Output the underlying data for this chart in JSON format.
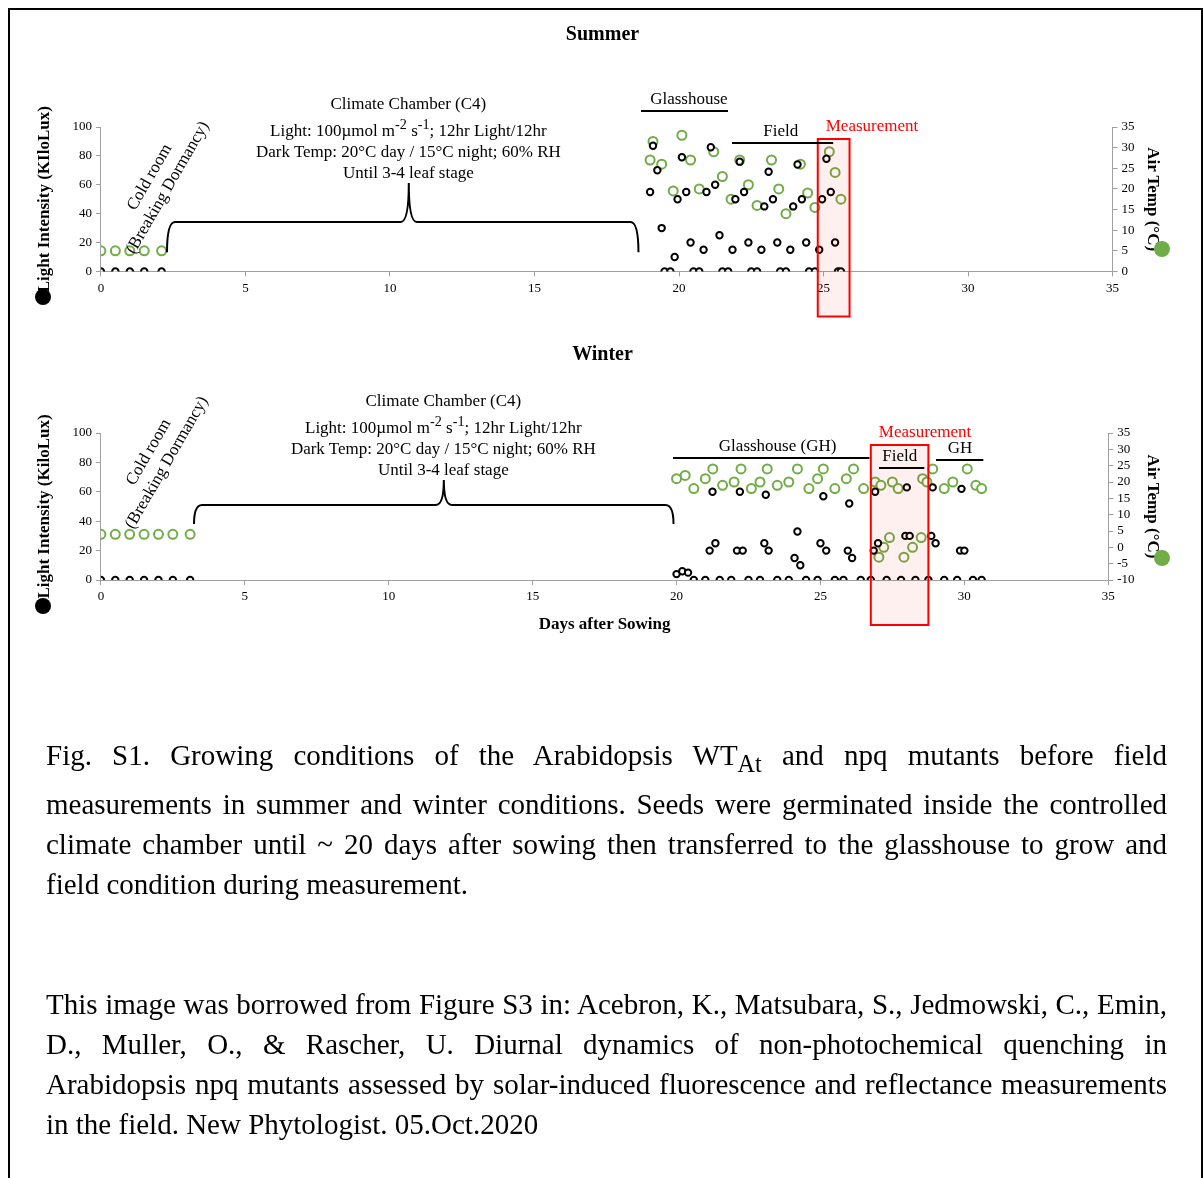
{
  "chart_data": [
    {
      "type": "scatter",
      "title": "Summer",
      "ylabel": "Light Intensity (KIloLux)",
      "y2label": "Air Temp (°C)",
      "marker": "circle",
      "xlim": [
        0,
        35
      ],
      "xticks": [
        0,
        5,
        10,
        15,
        20,
        25,
        30,
        35
      ],
      "ylim": [
        0,
        100
      ],
      "yticks": [
        0,
        20,
        40,
        60,
        80,
        100
      ],
      "y2lim": [
        0,
        35
      ],
      "y2ticks": [
        0,
        5,
        10,
        15,
        20,
        25,
        30,
        35
      ],
      "series": [
        {
          "color": "#000000",
          "x": [
            0,
            0.5,
            1,
            1.5,
            2.1,
            19.0,
            19.1,
            19.25,
            19.4,
            19.5,
            19.7,
            19.85,
            19.95,
            20.1,
            20.25,
            20.4,
            20.5,
            20.7,
            20.85,
            20.95,
            21.1,
            21.25,
            21.4,
            21.5,
            21.7,
            21.85,
            21.95,
            22.1,
            22.25,
            22.4,
            22.5,
            22.7,
            22.85,
            22.95,
            23.1,
            23.25,
            23.4,
            23.5,
            23.7,
            23.85,
            23.95,
            24.1,
            24.25,
            24.4,
            24.5,
            24.7,
            24.85,
            24.95,
            25.1,
            25.25,
            25.4,
            25.5,
            25.6
          ],
          "values": [
            0,
            0,
            0,
            0,
            0,
            55,
            87,
            70,
            30,
            0,
            0,
            10,
            50,
            79,
            55,
            20,
            0,
            0,
            15,
            55,
            86,
            60,
            25,
            0,
            0,
            15,
            50,
            76,
            55,
            20,
            0,
            0,
            15,
            45,
            69,
            50,
            20,
            0,
            0,
            15,
            45,
            74,
            50,
            20,
            0,
            0,
            15,
            50,
            78,
            55,
            20,
            0,
            0
          ]
        },
        {
          "color": "#70ad47",
          "axis": "y2",
          "x": [
            0,
            0.5,
            1,
            1.5,
            2.1,
            19.0,
            19.1,
            19.4,
            19.8,
            20.1,
            20.4,
            20.7,
            21.2,
            21.5,
            21.8,
            22.1,
            22.4,
            22.7,
            23.2,
            23.45,
            23.7,
            24.2,
            24.45,
            24.7,
            25.2,
            25.4,
            25.6
          ],
          "values": [
            5,
            5,
            5,
            5,
            5,
            27,
            31.5,
            26,
            19.5,
            33,
            27,
            20,
            29,
            23,
            17.5,
            27,
            21,
            16,
            27,
            20,
            14,
            26,
            19,
            15.5,
            29,
            24,
            17.5
          ]
        }
      ],
      "bands": [
        {
          "axis": "x",
          "from": 24.8,
          "to": 25.9,
          "label": "Measurement",
          "color": "#ff0000"
        }
      ],
      "annotations": [
        "Cold room\n(Breaking Dormancy)",
        "Climate Chamber (C4)\nLight:  100µmol m$^{-2}$ s$^{-1}$; 12hr Light/12hr\nDark Temp: 20°C day / 15°C night;  60% RH\nUntil 3-4 leaf stage",
        "Glasshouse",
        "Field"
      ]
    },
    {
      "type": "scatter",
      "title": "Winter",
      "xlabel": "Days after Sowing",
      "ylabel": "Light Intensity (KiloLux)",
      "y2label": "Air Temp (°C)",
      "marker": "circle",
      "xlim": [
        0,
        35
      ],
      "xticks": [
        0,
        5,
        10,
        15,
        20,
        25,
        30,
        35
      ],
      "ylim": [
        0,
        100
      ],
      "yticks": [
        0,
        20,
        40,
        60,
        80,
        100
      ],
      "y2lim": [
        -10,
        35
      ],
      "y2ticks": [
        -10,
        -5,
        0,
        5,
        10,
        15,
        20,
        25,
        30,
        35
      ],
      "series": [
        {
          "color": "#000000",
          "x": [
            0,
            0.5,
            1,
            1.5,
            2,
            2.5,
            3.1,
            20.0,
            20.2,
            20.4,
            20.6,
            21.0,
            21.15,
            21.25,
            21.35,
            21.5,
            21.9,
            22.1,
            22.2,
            22.3,
            22.5,
            22.9,
            23.05,
            23.1,
            23.2,
            23.5,
            23.9,
            24.1,
            24.2,
            24.3,
            24.5,
            24.9,
            25.0,
            25.1,
            25.2,
            25.5,
            25.8,
            25.95,
            26.0,
            26.1,
            26.4,
            26.75,
            26.85,
            26.9,
            27.0,
            27.3,
            27.8,
            27.95,
            28.0,
            28.1,
            28.3,
            28.75,
            28.85,
            28.9,
            29.0,
            29.3,
            29.75,
            29.85,
            29.9,
            30.0,
            30.3,
            30.6
          ],
          "values": [
            0,
            0,
            0,
            0,
            0,
            0,
            0,
            4,
            6,
            5,
            0,
            0,
            20,
            60,
            25,
            0,
            0,
            20,
            60,
            20,
            0,
            0,
            25,
            58,
            20,
            0,
            0,
            15,
            33,
            10,
            0,
            0,
            25,
            57,
            20,
            0,
            0,
            20,
            52,
            15,
            0,
            0,
            20,
            60,
            25,
            0,
            0,
            30,
            63,
            30,
            0,
            0,
            30,
            63,
            25,
            0,
            0,
            20,
            62,
            20,
            0,
            0
          ]
        },
        {
          "color": "#70ad47",
          "axis": "y2",
          "x": [
            0,
            0.5,
            1,
            1.5,
            2,
            2.5,
            3.1,
            20.0,
            20.3,
            20.6,
            21.0,
            21.26,
            21.6,
            22.0,
            22.24,
            22.6,
            22.9,
            23.15,
            23.5,
            23.9,
            24.2,
            24.6,
            24.9,
            25.1,
            25.5,
            25.9,
            26.15,
            26.5,
            26.9,
            27.03,
            27.1,
            27.2,
            27.4,
            27.5,
            27.7,
            27.9,
            28.2,
            28.5,
            28.55,
            28.7,
            28.9,
            29.3,
            29.6,
            30.1,
            30.4,
            30.6
          ],
          "values": [
            4,
            4,
            4,
            4,
            4,
            4,
            4,
            21,
            22,
            18,
            21,
            24,
            19,
            20,
            24,
            18,
            20,
            24,
            19,
            20,
            24,
            18,
            21,
            24,
            18,
            21,
            24,
            18,
            20,
            -3,
            19,
            0,
            3,
            20,
            18,
            -3,
            0,
            3,
            21,
            20,
            24,
            18,
            20,
            24,
            19,
            18
          ]
        }
      ],
      "bands": [
        {
          "axis": "x",
          "from": 26.75,
          "to": 28.75,
          "label": "Measurement",
          "color": "#ff0000"
        }
      ],
      "annotations": [
        "Cold room\n(Breaking Dormancy)",
        "Climate Chamber (C4)\nLight:  100µmol m$^{-2}$ s$^{-1}$; 12hr Light/12hr\nDark Temp: 20°C day / 15°C night;  60% RH\nUntil 3-4 leaf stage",
        "Glasshouse (GH)",
        "Field",
        "GH",
        "Fig. S1. Growing conditions of the Arabidopsis WT$_{At}$ and npq mutants before field measurements in summer and winter conditions. Seeds were germinated inside the controlled climate chamber until ~ 20 days after sowing then transferred to the glasshouse to grow and field condition during measurement.",
        "This image was borrowed from Figure S3 in: Acebron, K., Matsubara, S., Jedmowski, C., Emin, D., Muller, O., & Rascher, U. Diurnal dynamics of non-photochemical quenching in Arabidopsis npq mutants assessed by solar-induced fluorescence and reflectance measurements in the field. New Phytologist. 05.Oct.2020"
      ]
    }
  ]
}
